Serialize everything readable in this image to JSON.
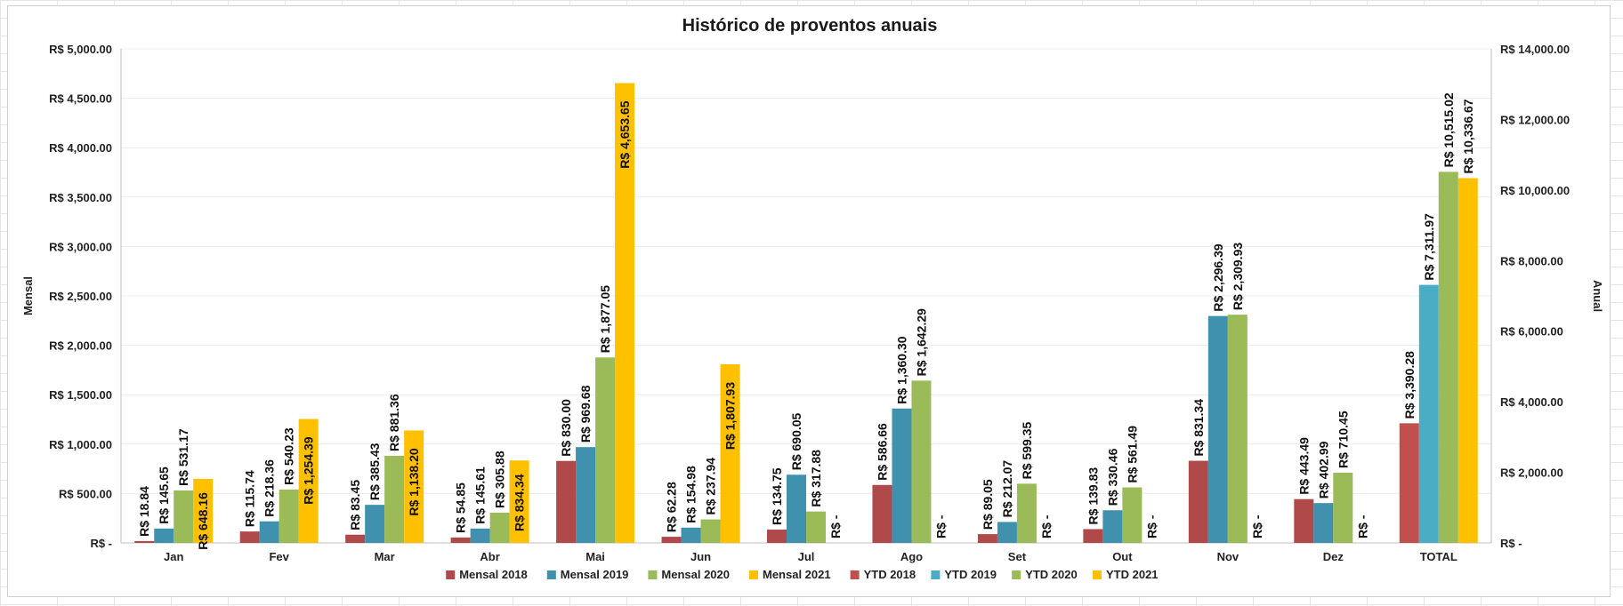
{
  "chart_data": {
    "type": "bar",
    "title": "Histórico de proventos anuais",
    "ylabel": "Mensal",
    "y2label": "Anual",
    "ylim": [
      0,
      5000
    ],
    "y2lim": [
      0,
      14000
    ],
    "yticks": [
      "R$ -",
      "R$ 500.00",
      "R$ 1,000.00",
      "R$ 1,500.00",
      "R$ 2,000.00",
      "R$ 2,500.00",
      "R$ 3,000.00",
      "R$ 3,500.00",
      "R$ 4,000.00",
      "R$ 4,500.00",
      "R$ 5,000.00"
    ],
    "y2ticks": [
      "R$ -",
      "R$ 2,000.00",
      "R$ 4,000.00",
      "R$ 6,000.00",
      "R$ 8,000.00",
      "R$ 10,000.00",
      "R$ 12,000.00",
      "R$ 14,000.00"
    ],
    "categories": [
      "Jan",
      "Fev",
      "Mar",
      "Abr",
      "Mai",
      "Jun",
      "Jul",
      "Ago",
      "Set",
      "Out",
      "Nov",
      "Dez",
      "TOTAL"
    ],
    "legend_position": "bottom",
    "grid": true,
    "series": [
      {
        "name": "Mensal 2018",
        "axis": "primary",
        "color": "#b04a4a",
        "values": [
          18.84,
          115.74,
          83.45,
          54.85,
          830.0,
          62.28,
          134.75,
          586.66,
          89.05,
          139.83,
          831.34,
          443.49,
          null
        ],
        "labels": [
          "R$ 18.84",
          "R$ 115.74",
          "R$ 83.45",
          "R$ 54.85",
          "R$ 830.00",
          "R$ 62.28",
          "R$ 134.75",
          "R$ 586.66",
          "R$ 89.05",
          "R$ 139.83",
          "R$ 831.34",
          "R$ 443.49",
          ""
        ]
      },
      {
        "name": "Mensal 2019",
        "axis": "primary",
        "color": "#3f91ad",
        "values": [
          145.65,
          218.36,
          385.43,
          145.61,
          969.68,
          154.98,
          690.05,
          1360.3,
          212.07,
          330.46,
          2296.39,
          402.99,
          null
        ],
        "labels": [
          "R$ 145.65",
          "R$ 218.36",
          "R$ 385.43",
          "R$ 145.61",
          "R$ 969.68",
          "R$ 154.98",
          "R$ 690.05",
          "R$ 1,360.30",
          "R$ 212.07",
          "R$ 330.46",
          "R$ 2,296.39",
          "R$ 402.99",
          ""
        ]
      },
      {
        "name": "Mensal 2020",
        "axis": "primary",
        "color": "#9bbb59",
        "values": [
          531.17,
          540.23,
          881.36,
          305.88,
          1877.05,
          237.94,
          317.88,
          1642.29,
          599.35,
          561.49,
          2309.93,
          710.45,
          null
        ],
        "labels": [
          "R$ 531.17",
          "R$ 540.23",
          "R$ 881.36",
          "R$ 305.88",
          "R$ 1,877.05",
          "R$ 237.94",
          "R$ 317.88",
          "R$ 1,642.29",
          "R$ 599.35",
          "R$ 561.49",
          "R$ 2,309.93",
          "R$ 710.45",
          ""
        ]
      },
      {
        "name": "Mensal 2021",
        "axis": "primary",
        "color": "#ffc000",
        "values": [
          648.16,
          1254.39,
          1138.2,
          834.34,
          4653.65,
          1807.93,
          0,
          0,
          0,
          0,
          0,
          0,
          null
        ],
        "labels": [
          "R$ 648.16",
          "R$ 1,254.39",
          "R$ 1,138.20",
          "R$ 834.34",
          "R$ 4,653.65",
          "R$ 1,807.93",
          "R$ -",
          "R$ -",
          "R$ -",
          "R$ -",
          "R$ -",
          "R$ -",
          ""
        ]
      },
      {
        "name": "YTD 2018",
        "axis": "secondary",
        "color": "#c0504d",
        "values": [
          null,
          null,
          null,
          null,
          null,
          null,
          null,
          null,
          null,
          null,
          null,
          null,
          3390.28
        ],
        "labels": [
          "",
          "",
          "",
          "",
          "",
          "",
          "",
          "",
          "",
          "",
          "",
          "",
          "R$ 3,390.28"
        ]
      },
      {
        "name": "YTD 2019",
        "axis": "secondary",
        "color": "#4bacc6",
        "values": [
          null,
          null,
          null,
          null,
          null,
          null,
          null,
          null,
          null,
          null,
          null,
          null,
          7311.97
        ],
        "labels": [
          "",
          "",
          "",
          "",
          "",
          "",
          "",
          "",
          "",
          "",
          "",
          "",
          "R$ 7,311.97"
        ]
      },
      {
        "name": "YTD 2020",
        "axis": "secondary",
        "color": "#9bbb59",
        "values": [
          null,
          null,
          null,
          null,
          null,
          null,
          null,
          null,
          null,
          null,
          null,
          null,
          10515.02
        ],
        "labels": [
          "",
          "",
          "",
          "",
          "",
          "",
          "",
          "",
          "",
          "",
          "",
          "",
          "R$ 10,515.02"
        ]
      },
      {
        "name": "YTD 2021",
        "axis": "secondary",
        "color": "#ffc000",
        "values": [
          null,
          null,
          null,
          null,
          null,
          null,
          null,
          null,
          null,
          null,
          null,
          null,
          10336.67
        ],
        "labels": [
          "",
          "",
          "",
          "",
          "",
          "",
          "",
          "",
          "",
          "",
          "",
          "",
          "R$ 10,336.67"
        ]
      }
    ]
  }
}
